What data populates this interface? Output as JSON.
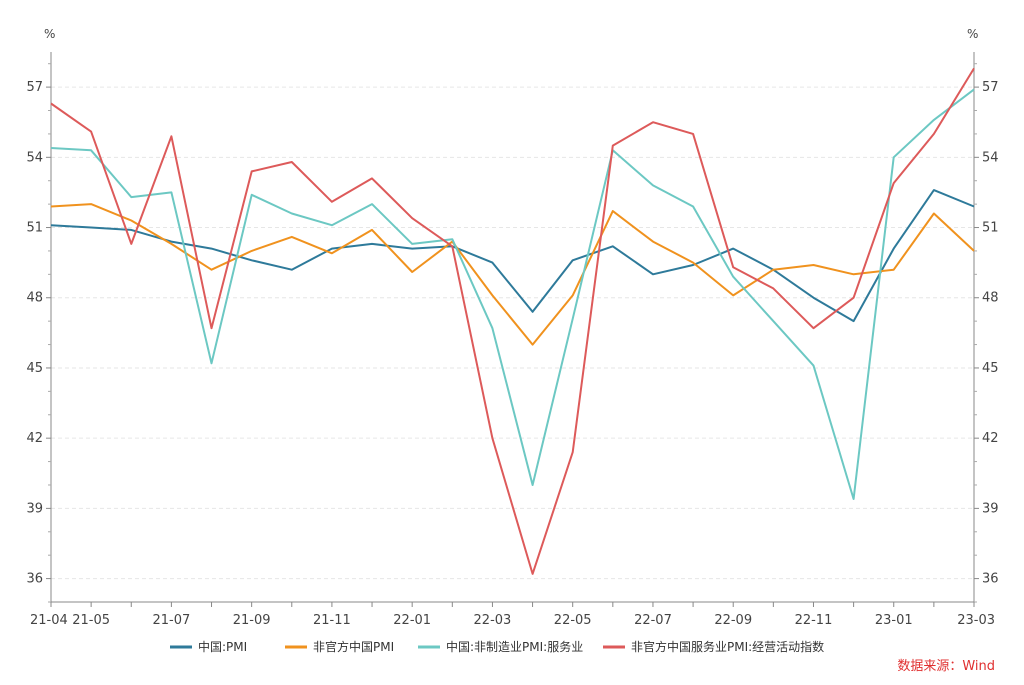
{
  "chart_data": {
    "type": "line",
    "y_unit_left": "%",
    "y_unit_right": "%",
    "ylim": [
      35,
      58.5
    ],
    "y_ticks": [
      36,
      39,
      42,
      45,
      48,
      51,
      54,
      57
    ],
    "grid": true,
    "legend_position": "bottom",
    "categories": [
      "21-04",
      "21-05",
      "21-06",
      "21-07",
      "21-08",
      "21-09",
      "21-10",
      "21-11",
      "21-12",
      "22-01",
      "22-02",
      "22-03",
      "22-04",
      "22-05",
      "22-06",
      "22-07",
      "22-08",
      "22-09",
      "22-10",
      "22-11",
      "22-12",
      "23-01",
      "23-02",
      "23-03"
    ],
    "x_tick_labels": [
      "21-04",
      "21-05",
      "",
      "21-07",
      "",
      "21-09",
      "",
      "21-11",
      "",
      "22-01",
      "",
      "22-03",
      "",
      "22-05",
      "",
      "22-07",
      "",
      "22-09",
      "",
      "22-11",
      "",
      "23-01",
      "",
      "23-03"
    ],
    "series": [
      {
        "name": "中国:PMI",
        "color": "#2e7a9a",
        "values": [
          51.1,
          51.0,
          50.9,
          50.4,
          50.1,
          49.6,
          49.2,
          50.1,
          50.3,
          50.1,
          50.2,
          49.5,
          47.4,
          49.6,
          50.2,
          49.0,
          49.4,
          50.1,
          49.2,
          48.0,
          47.0,
          50.1,
          52.6,
          51.9
        ]
      },
      {
        "name": "非官方中国PMI",
        "color": "#f0921e",
        "values": [
          51.9,
          52.0,
          51.3,
          50.3,
          49.2,
          50.0,
          50.6,
          49.9,
          50.9,
          49.1,
          50.4,
          48.1,
          46.0,
          48.1,
          51.7,
          50.4,
          49.5,
          48.1,
          49.2,
          49.4,
          49.0,
          49.2,
          51.6,
          50.0
        ]
      },
      {
        "name": "中国:非制造业PMI:服务业",
        "color": "#6cc8c3",
        "values": [
          54.4,
          54.3,
          52.3,
          52.5,
          45.2,
          52.4,
          51.6,
          51.1,
          52.0,
          50.3,
          50.5,
          46.7,
          40.0,
          47.1,
          54.3,
          52.8,
          51.9,
          48.9,
          47.0,
          45.1,
          39.4,
          54.0,
          55.6,
          56.9
        ]
      },
      {
        "name": "非官方中国服务业PMI:经营活动指数",
        "color": "#dd5a5a",
        "values": [
          56.3,
          55.1,
          50.3,
          54.9,
          46.7,
          53.4,
          53.8,
          52.1,
          53.1,
          51.4,
          50.2,
          42.0,
          36.2,
          41.4,
          54.5,
          55.5,
          55.0,
          49.3,
          48.4,
          46.7,
          48.0,
          52.9,
          55.0,
          57.8
        ]
      }
    ]
  },
  "source": "数据来源：Wind"
}
